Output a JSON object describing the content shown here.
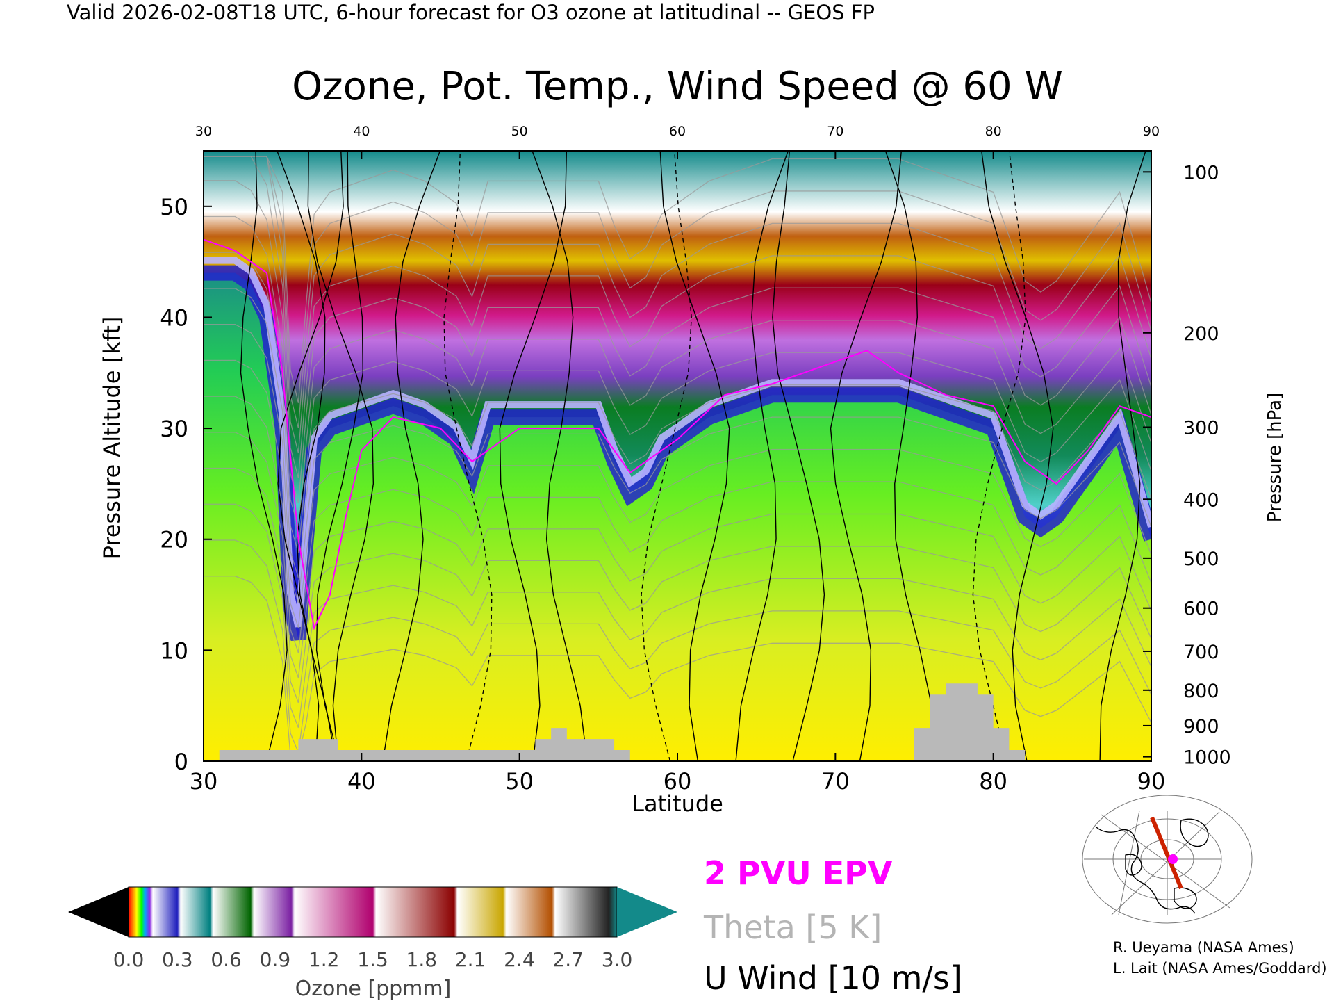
{
  "header": {
    "valid_line": "Valid 2026-02-08T18 UTC, 6-hour forecast for O3 ozone at latitudinal -- GEOS FP"
  },
  "chart_data": {
    "type": "heatmap",
    "title": "Ozone, Pot. Temp., Wind Speed @ 60 W",
    "xlabel": "Latitude",
    "ylabel": "Pressure Altitude [kft]",
    "ylabel_right": "Pressure [hPa]",
    "xlim": [
      30,
      90
    ],
    "ylim": [
      0,
      55
    ],
    "x_ticks": [
      "30",
      "40",
      "50",
      "60",
      "70",
      "80",
      "90"
    ],
    "y_ticks": [
      {
        "value": 0,
        "label": "0"
      },
      {
        "value": 10,
        "label": "10"
      },
      {
        "value": 20,
        "label": "20"
      },
      {
        "value": 30,
        "label": "30"
      },
      {
        "value": 40,
        "label": "40"
      },
      {
        "value": 50,
        "label": "50"
      }
    ],
    "pressure_ticks": [
      {
        "label": "100",
        "kft": 53.1
      },
      {
        "label": "200",
        "kft": 38.6
      },
      {
        "label": "300",
        "kft": 30.1
      },
      {
        "label": "400",
        "kft": 23.6
      },
      {
        "label": "500",
        "kft": 18.3
      },
      {
        "label": "600",
        "kft": 13.8
      },
      {
        "label": "700",
        "kft": 9.9
      },
      {
        "label": "800",
        "kft": 6.4
      },
      {
        "label": "900",
        "kft": 3.2
      },
      {
        "label": "1000",
        "kft": 0.4
      }
    ],
    "tropopause_kft": [
      [
        30,
        44
      ],
      [
        31,
        44
      ],
      [
        32,
        44
      ],
      [
        33,
        43
      ],
      [
        34,
        40
      ],
      [
        35,
        30
      ],
      [
        35.5,
        14
      ],
      [
        36,
        11
      ],
      [
        36.5,
        20
      ],
      [
        37,
        28
      ],
      [
        38,
        30
      ],
      [
        40,
        31
      ],
      [
        42,
        32
      ],
      [
        44,
        31
      ],
      [
        46,
        29
      ],
      [
        47,
        26
      ],
      [
        48,
        31
      ],
      [
        50,
        31
      ],
      [
        52,
        31
      ],
      [
        54,
        31
      ],
      [
        55,
        31
      ],
      [
        56,
        27
      ],
      [
        57,
        24
      ],
      [
        58,
        25
      ],
      [
        59,
        28
      ],
      [
        60,
        29
      ],
      [
        61,
        30
      ],
      [
        62,
        31
      ],
      [
        64,
        32
      ],
      [
        66,
        33
      ],
      [
        68,
        33
      ],
      [
        70,
        33
      ],
      [
        72,
        33
      ],
      [
        74,
        33
      ],
      [
        76,
        32
      ],
      [
        78,
        31
      ],
      [
        80,
        30
      ],
      [
        81,
        26
      ],
      [
        82,
        22
      ],
      [
        83,
        21
      ],
      [
        84,
        22
      ],
      [
        85,
        24
      ],
      [
        86,
        26
      ],
      [
        87,
        28
      ],
      [
        88,
        30
      ],
      [
        89,
        25
      ],
      [
        90,
        20
      ]
    ],
    "ozone_profile_ppmm": [
      {
        "kft": 0,
        "value": 0.05
      },
      {
        "kft": 5,
        "value": 0.06
      },
      {
        "kft": 15,
        "value": 0.05
      },
      {
        "kft": 25,
        "value": 0.08
      },
      {
        "kft": "tropopause",
        "value": 0.3
      },
      {
        "kft": "tropopause+3",
        "value": 0.5
      },
      {
        "kft": "tropopause+6",
        "value": 0.8
      },
      {
        "kft": "tropopause+10",
        "value": 1.2
      },
      {
        "kft": "tropopause+14",
        "value": 1.6
      },
      {
        "kft": "tropopause+18",
        "value": 2.0
      },
      {
        "kft": "tropopause+22",
        "value": 2.5
      },
      {
        "kft": "tropopause+26",
        "value": 3.0
      }
    ],
    "epv_2pvu_kft": [
      [
        30,
        47
      ],
      [
        32,
        46
      ],
      [
        34,
        44
      ],
      [
        35,
        35
      ],
      [
        36,
        20
      ],
      [
        37,
        12
      ],
      [
        38,
        15
      ],
      [
        39,
        22
      ],
      [
        40,
        28
      ],
      [
        42,
        31
      ],
      [
        45,
        30
      ],
      [
        47,
        27
      ],
      [
        50,
        30
      ],
      [
        55,
        30
      ],
      [
        57,
        26
      ],
      [
        60,
        29
      ],
      [
        63,
        33
      ],
      [
        66,
        34
      ],
      [
        70,
        36
      ],
      [
        72,
        37
      ],
      [
        74,
        35
      ],
      [
        77,
        33
      ],
      [
        80,
        32
      ],
      [
        82,
        27
      ],
      [
        84,
        25
      ],
      [
        86,
        28
      ],
      [
        88,
        32
      ],
      [
        90,
        31
      ]
    ],
    "surface_terrain_kft": [
      [
        30,
        0
      ],
      [
        31,
        0
      ],
      [
        31,
        1
      ],
      [
        36,
        1
      ],
      [
        36,
        2
      ],
      [
        38.5,
        2
      ],
      [
        38.5,
        1
      ],
      [
        51,
        1
      ],
      [
        51,
        2
      ],
      [
        52,
        2
      ],
      [
        52,
        3
      ],
      [
        53,
        3
      ],
      [
        53,
        2
      ],
      [
        56,
        2
      ],
      [
        56,
        1
      ],
      [
        57,
        1
      ],
      [
        57,
        0
      ],
      [
        75,
        0
      ],
      [
        75,
        3
      ],
      [
        76,
        3
      ],
      [
        76,
        6
      ],
      [
        77,
        6
      ],
      [
        77,
        7
      ],
      [
        79,
        7
      ],
      [
        79,
        6
      ],
      [
        80,
        6
      ],
      [
        80,
        3
      ],
      [
        81,
        3
      ],
      [
        81,
        1
      ],
      [
        82,
        1
      ],
      [
        82,
        0
      ],
      [
        90,
        0
      ]
    ],
    "colorbar": {
      "label": "Ozone [ppmm]",
      "ticks": [
        "0.0",
        "0.3",
        "0.6",
        "0.9",
        "1.2",
        "1.5",
        "1.8",
        "2.1",
        "2.4",
        "2.7",
        "3.0"
      ],
      "min": 0.0,
      "max": 3.0,
      "under_color": "#000000",
      "over_color": "#138a8a",
      "stops": [
        {
          "v": 0.0,
          "c": "#ff0000"
        },
        {
          "v": 0.03,
          "c": "#ff9900"
        },
        {
          "v": 0.05,
          "c": "#ffff00"
        },
        {
          "v": 0.08,
          "c": "#00ff00"
        },
        {
          "v": 0.1,
          "c": "#00aaff"
        },
        {
          "v": 0.13,
          "c": "#8a2be2"
        },
        {
          "v": 0.15,
          "c": "#ffffff"
        },
        {
          "v": 0.3,
          "c": "#1e1ebd"
        },
        {
          "v": 0.32,
          "c": "#ffffff"
        },
        {
          "v": 0.5,
          "c": "#008080"
        },
        {
          "v": 0.52,
          "c": "#ffffff"
        },
        {
          "v": 0.75,
          "c": "#006400"
        },
        {
          "v": 0.77,
          "c": "#ffffff"
        },
        {
          "v": 1.0,
          "c": "#7a1fa2"
        },
        {
          "v": 1.02,
          "c": "#ffffff"
        },
        {
          "v": 1.5,
          "c": "#b0006e"
        },
        {
          "v": 1.52,
          "c": "#ffffff"
        },
        {
          "v": 2.0,
          "c": "#8b0000"
        },
        {
          "v": 2.02,
          "c": "#ffffff"
        },
        {
          "v": 2.3,
          "c": "#c9a600"
        },
        {
          "v": 2.32,
          "c": "#ffffff"
        },
        {
          "v": 2.6,
          "c": "#b34f00"
        },
        {
          "v": 2.62,
          "c": "#ffffff"
        },
        {
          "v": 2.95,
          "c": "#222222"
        },
        {
          "v": 3.0,
          "c": "#138a8a"
        }
      ]
    },
    "legend": [
      {
        "text": "2 PVU EPV",
        "color": "#ff00ff"
      },
      {
        "text": "Theta [5 K]",
        "color": "#b4b4b4"
      },
      {
        "text": "U Wind [10 m/s]",
        "color": "#000000"
      }
    ],
    "grid": false
  },
  "credits": {
    "line1": "R. Ueyama (NASA Ames)",
    "line2": "L. Lait (NASA Ames/Goddard)"
  },
  "colors": {
    "epv": "#ff00ff",
    "theta": "#9a9a9a",
    "uwind": "#000000",
    "terrain": "#b9b9b9",
    "map_track": "#cc2200",
    "map_marker": "#ff00ff"
  }
}
